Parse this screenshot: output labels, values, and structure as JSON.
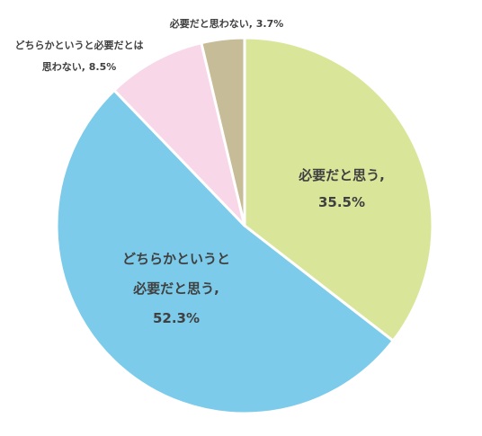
{
  "chart_data": {
    "type": "pie",
    "start_angle_deg": 0,
    "direction": "clockwise",
    "slices": [
      {
        "label": "必要だと思う",
        "value": 35.5,
        "value_text": "35.5%",
        "color": "#d9e69a",
        "label_lines": [
          "必要だと思う,",
          "35.5%"
        ],
        "label_position": "inside"
      },
      {
        "label": "どちらかというと必要だと思う",
        "value": 52.3,
        "value_text": "52.3%",
        "color": "#7ccbea",
        "label_lines": [
          "どちらかというと",
          "必要だと思う,",
          "52.3%"
        ],
        "label_position": "inside"
      },
      {
        "label": "どちらかというと必要だとは思わない",
        "value": 8.5,
        "value_text": "8.5%",
        "color": "#f8d7e8",
        "label_lines": [
          "どちらかというと必要だとは",
          "思わない, 8.5%"
        ],
        "label_position": "outside"
      },
      {
        "label": "必要だと思わない",
        "value": 3.7,
        "value_text": "3.7%",
        "color": "#c7bc98",
        "label_lines": [
          "必要だと思わない, 3.7%"
        ],
        "label_position": "outside"
      }
    ]
  }
}
